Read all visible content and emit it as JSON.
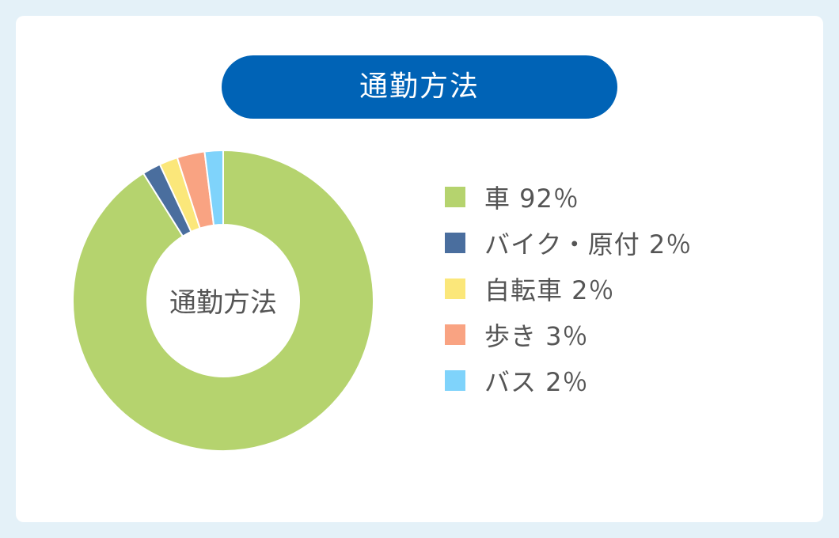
{
  "title": "通勤方法",
  "chart_data": {
    "type": "pie",
    "center_label": "通勤方法",
    "categories": [
      "車",
      "バイク・原付",
      "自転車",
      "歩き",
      "バス"
    ],
    "values": [
      92,
      2,
      2,
      3,
      2
    ],
    "colors": [
      "#b5d36e",
      "#4a6e9e",
      "#fbe77a",
      "#f9a382",
      "#7fd3fb"
    ],
    "legend": [
      {
        "label": "車 92％",
        "color": "#b5d36e"
      },
      {
        "label": "バイク・原付 2％",
        "color": "#4a6e9e"
      },
      {
        "label": "自転車 2％",
        "color": "#fbe77a"
      },
      {
        "label": "歩き 3％",
        "color": "#f9a382"
      },
      {
        "label": "バス 2％",
        "color": "#7fd3fb"
      }
    ],
    "legend_position": "right"
  }
}
